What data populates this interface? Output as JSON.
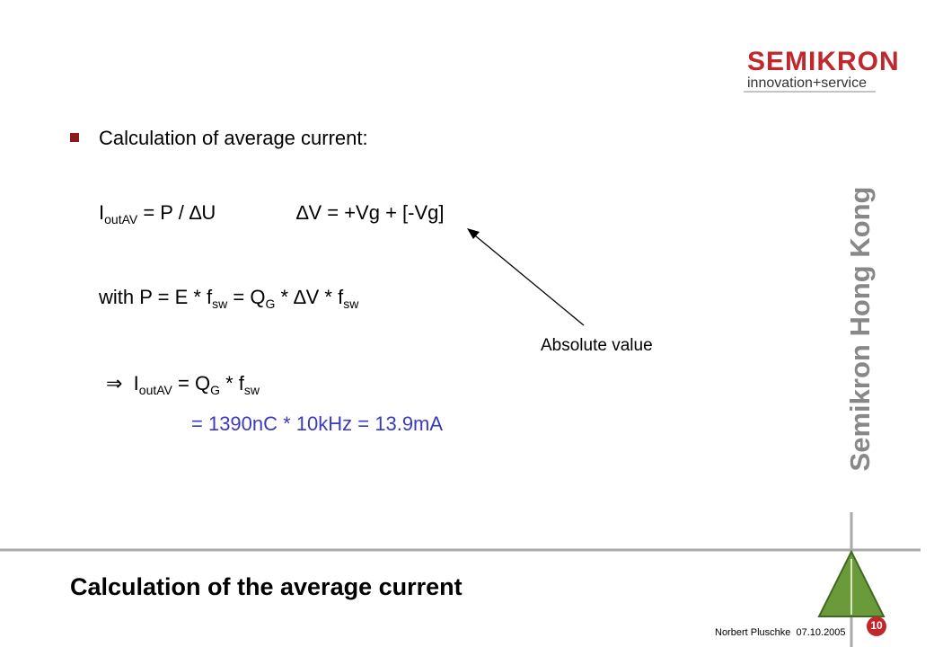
{
  "logo": {
    "brand": "SEMIKRON",
    "tagline": "innovation+service"
  },
  "side_title": "Semikron Hong Kong",
  "bullet": "Calculation of average current:",
  "formula_1": [
    "I",
    "outAV",
    " = P / ∆U"
  ],
  "formula_2": "∆V = +Vg + [-Vg]",
  "formula_3": [
    "with P = E * f",
    "sw",
    " = Q",
    "G",
    " * ∆V * f",
    "sw"
  ],
  "annotation": "Absolute value",
  "formula_4": [
    "⇒  I",
    "outAV",
    " = Q",
    "G",
    " * f",
    "sw"
  ],
  "result": "= 1390nC * 10kHz = 13.9mA",
  "title": "Calculation of the average current",
  "footer": {
    "author_date": "Norbert Pluschke  07.10.2005",
    "page": "10"
  }
}
